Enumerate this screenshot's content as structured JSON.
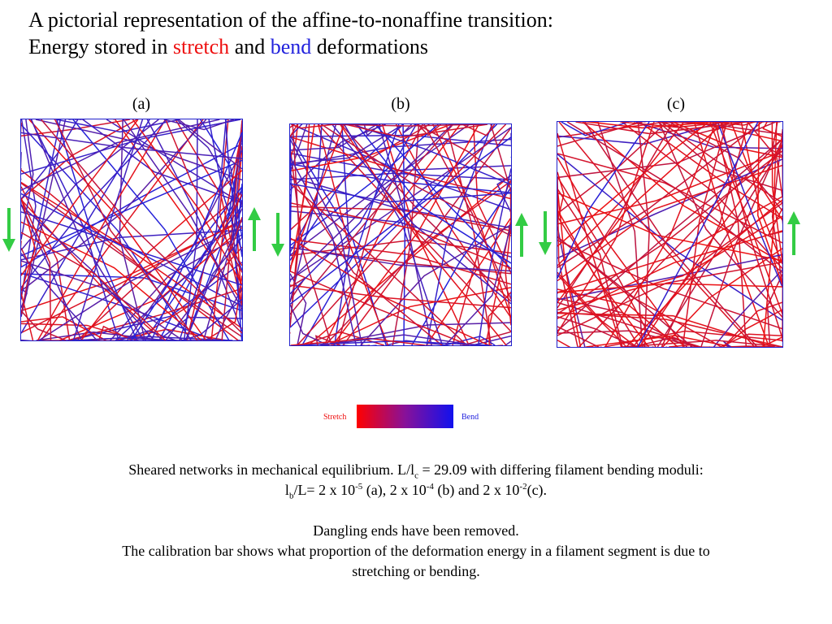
{
  "title": {
    "line1": "A pictorial representation of the affine-to-nonaffine transition:",
    "line2_prefix": "Energy stored in ",
    "stretch_word": "stretch",
    "and_word": " and ",
    "bend_word": "bend",
    "line2_suffix": " deformations"
  },
  "colors": {
    "stretch": "#ee1111",
    "bend": "#2222dd",
    "arrow": "#33cc44",
    "frame": "#2222cc"
  },
  "panels": [
    {
      "label": "(a)",
      "stretch_fraction": 0.35
    },
    {
      "label": "(b)",
      "stretch_fraction": 0.55
    },
    {
      "label": "(c)",
      "stretch_fraction": 0.92
    }
  ],
  "calibration": {
    "left_label": "Stretch",
    "right_label": "Bend"
  },
  "caption": {
    "l1_a": "Sheared networks in mechanical equilibrium. L/l",
    "l1_sub": "c",
    "l1_b": " = 29.09 with differing filament bending moduli:",
    "l2_a": "l",
    "l2_sub": "b",
    "l2_b": "/L= 2 x 10",
    "l2_sup1": "-5",
    "l2_c": " (a), 2 x 10",
    "l2_sup2": "-4",
    "l2_d": " (b) and 2 x 10",
    "l2_sup3": "-2",
    "l2_e": "(c).",
    "l3": "Dangling ends have been removed.",
    "l4": "The calibration bar shows what proportion of the deformation energy in a filament segment is due to",
    "l5": "stretching or bending."
  }
}
